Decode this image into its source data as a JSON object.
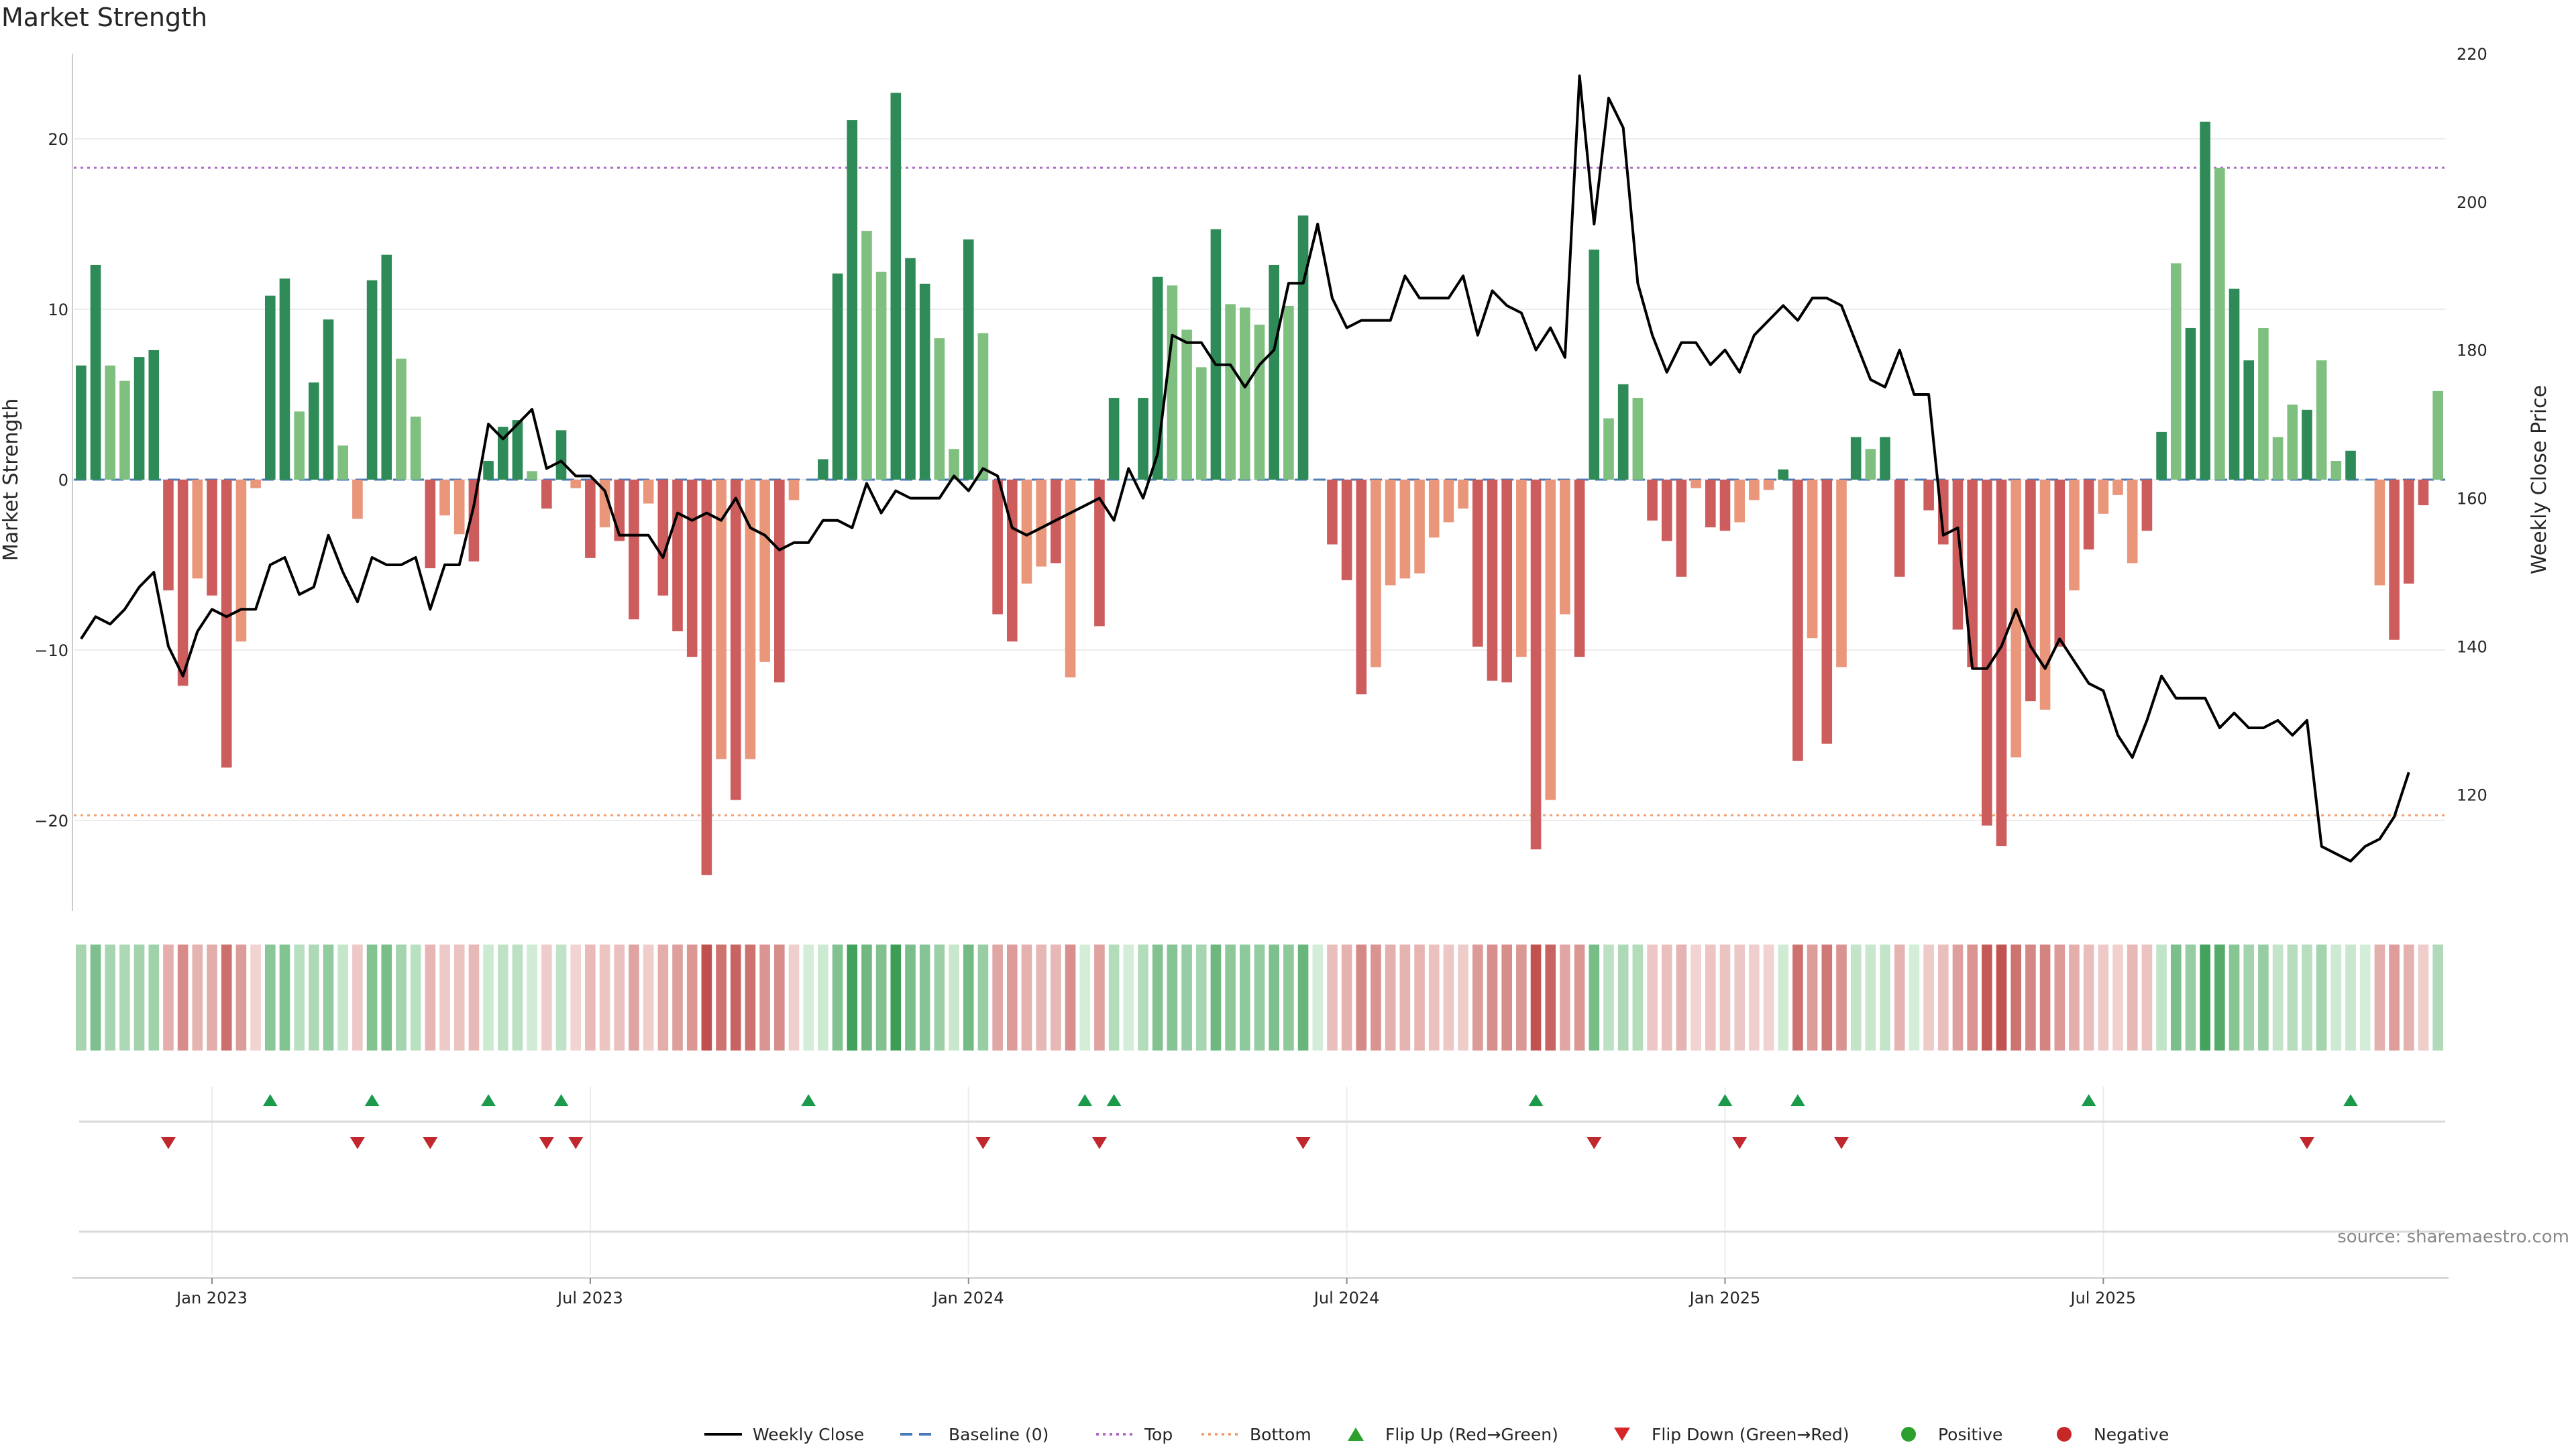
{
  "title": "Market Strength",
  "source": "source: sharemaestro.com",
  "chart_data": {
    "type": "bar",
    "ylabel_left": "Market Strength",
    "ylabel_right": "Weekly Close Price",
    "left_ylim": [
      -25,
      25
    ],
    "right_ylim": [
      105,
      220
    ],
    "left_ticks": [
      20,
      10,
      0,
      -10,
      -20
    ],
    "right_ticks": [
      220,
      200,
      180,
      160,
      140,
      120
    ],
    "top_line": 18.3,
    "bottom_line": -19.7,
    "x_ticks": [
      "Jan 2023",
      "Jul 2023",
      "Jan 2024",
      "Jul 2024",
      "Jan 2025",
      "Jul 2025"
    ],
    "x_tick_weeks": [
      9,
      35,
      61,
      87,
      113,
      139
    ],
    "grid": true,
    "strength": [
      6.7,
      12.6,
      6.7,
      5.8,
      7.2,
      7.6,
      -6.5,
      -12.1,
      -5.8,
      -6.8,
      -16.9,
      -9.5,
      -0.5,
      10.8,
      11.8,
      4,
      5.7,
      9.4,
      2,
      -2.3,
      11.7,
      13.2,
      7.1,
      3.7,
      -5.2,
      -2.1,
      -3.2,
      -4.8,
      1.1,
      3.1,
      3.5,
      0.5,
      -1.7,
      2.9,
      -0.5,
      -4.6,
      -2.8,
      -3.6,
      -8.2,
      -1.4,
      -6.8,
      -8.9,
      -10.4,
      -23.2,
      -16.4,
      -18.8,
      -16.4,
      -10.7,
      -11.9,
      -1.2,
      0,
      1.2,
      12.1,
      21.1,
      14.6,
      12.2,
      22.7,
      13,
      11.5,
      8.3,
      1.8,
      14.1,
      8.6,
      -7.9,
      -9.5,
      -6.1,
      -5.1,
      -4.9,
      -11.6,
      0,
      -8.6,
      4.8,
      0,
      4.8,
      11.9,
      11.4,
      8.8,
      6.6,
      14.7,
      10.3,
      10.1,
      9.1,
      12.6,
      10.2,
      15.5,
      0,
      -3.8,
      -5.9,
      -12.6,
      -11,
      -6.2,
      -5.8,
      -5.5,
      -3.4,
      -2.5,
      -1.7,
      -9.8,
      -11.8,
      -11.9,
      -10.4,
      -21.7,
      -18.8,
      -7.9,
      -10.4,
      13.5,
      3.6,
      5.6,
      4.8,
      -2.4,
      -3.6,
      -5.7,
      -0.5,
      -2.8,
      -3,
      -2.5,
      -1.2,
      -0.6,
      0.6,
      -16.5,
      -9.3,
      -15.5,
      -11,
      2.5,
      1.8,
      2.5,
      -5.7,
      0,
      -1.8,
      -3.8,
      -8.8,
      -11,
      -20.3,
      -21.5,
      -16.3,
      -13,
      -13.5,
      -9.8,
      -6.5,
      -4.1,
      -2,
      -0.9,
      -4.9,
      -3,
      2.8,
      12.7,
      8.9,
      21,
      18.3,
      11.2,
      7,
      8.9,
      2.5,
      4.4,
      4.1,
      7,
      1.1,
      1.7,
      0,
      -6.2,
      -9.4,
      -6.1,
      -1.5,
      5.2
    ],
    "strength_shade": [
      0,
      0,
      1,
      1,
      0,
      0,
      0,
      0,
      1,
      0,
      0,
      1,
      1,
      0,
      0,
      1,
      0,
      0,
      1,
      1,
      0,
      0,
      1,
      1,
      0,
      1,
      1,
      0,
      0,
      0,
      0,
      1,
      0,
      0,
      1,
      0,
      1,
      0,
      0,
      1,
      0,
      0,
      0,
      0,
      1,
      0,
      1,
      1,
      0,
      1,
      1,
      0,
      0,
      0,
      1,
      1,
      0,
      0,
      0,
      1,
      1,
      0,
      1,
      0,
      0,
      1,
      1,
      0,
      1,
      0,
      0,
      0,
      0,
      0,
      0,
      1,
      1,
      1,
      0,
      1,
      1,
      1,
      0,
      1,
      0,
      1,
      0,
      0,
      0,
      1,
      1,
      1,
      1,
      1,
      1,
      1,
      0,
      0,
      0,
      1,
      0,
      1,
      1,
      0,
      0,
      1,
      0,
      1,
      0,
      0,
      0,
      1,
      0,
      0,
      1,
      1,
      1,
      0,
      0,
      1,
      0,
      1,
      0,
      1,
      0,
      0,
      1,
      0,
      0,
      0,
      0,
      0,
      0,
      1,
      0,
      1,
      0,
      1,
      0,
      1,
      1,
      1,
      0,
      0,
      1,
      0,
      0,
      1,
      0,
      0,
      1,
      1,
      1,
      0,
      1,
      1,
      0,
      0,
      1,
      0,
      0,
      0,
      1,
      1,
      0,
      1,
      0
    ],
    "close": [
      141,
      144,
      143,
      145,
      148,
      150,
      140,
      136,
      142,
      145,
      144,
      145,
      145,
      151,
      152,
      147,
      148,
      155,
      150,
      146,
      152,
      151,
      151,
      152,
      145,
      151,
      151,
      159,
      170,
      168,
      170,
      172,
      164,
      165,
      163,
      163,
      161,
      155,
      155,
      155,
      152,
      158,
      157,
      158,
      157,
      160,
      156,
      155,
      153,
      154,
      154,
      157,
      157,
      156,
      162,
      158,
      161,
      160,
      160,
      160,
      163,
      161,
      164,
      163,
      156,
      155,
      156,
      157,
      158,
      159,
      160,
      157,
      164,
      160,
      166,
      182,
      181,
      181,
      178,
      178,
      175,
      178,
      180,
      189,
      189,
      197,
      187,
      183,
      184,
      184,
      184,
      190,
      187,
      187,
      187,
      190,
      182,
      188,
      186,
      185,
      180,
      183,
      179,
      217,
      197,
      214,
      210,
      189,
      182,
      177,
      181,
      181,
      178,
      180,
      177,
      182,
      184,
      186,
      184,
      187,
      187,
      186,
      181,
      176,
      175,
      180,
      174,
      174,
      155,
      156,
      137,
      137,
      140,
      145,
      140,
      137,
      141,
      138,
      135,
      134,
      128,
      125,
      130,
      136,
      133,
      133,
      133,
      129,
      131,
      129,
      129,
      130,
      128,
      130,
      113,
      112,
      111,
      113,
      114,
      117,
      123
    ],
    "flip_up_weeks": [
      13,
      20,
      28,
      33,
      50,
      69,
      71,
      100,
      113,
      118,
      138,
      156
    ],
    "flip_down_weeks": [
      6,
      19,
      24,
      32,
      34,
      62,
      70,
      84,
      104,
      114,
      121,
      153
    ],
    "legend": [
      {
        "label": "Weekly Close",
        "marker": "line",
        "color": "#000000"
      },
      {
        "label": "Baseline (0)",
        "marker": "dashed",
        "color": "#4878b8"
      },
      {
        "label": "Top",
        "marker": "dotted",
        "color": "#b06ac8"
      },
      {
        "label": "Bottom",
        "marker": "dotted",
        "color": "#f0a070"
      },
      {
        "label": "Flip Up (Red→Green)",
        "marker": "triangle-up",
        "color": "#2ca02c"
      },
      {
        "label": "Flip Down (Green→Red)",
        "marker": "triangle-down",
        "color": "#d62728"
      },
      {
        "label": "Positive",
        "marker": "circle",
        "color": "#2ca02c"
      },
      {
        "label": "Negative",
        "marker": "circle",
        "color": "#c62828"
      }
    ],
    "colors": {
      "pos_dark": "#2e8b57",
      "pos_light": "#7fbf7f",
      "neg_dark": "#cd5c5c",
      "neg_light": "#e9967a"
    }
  }
}
